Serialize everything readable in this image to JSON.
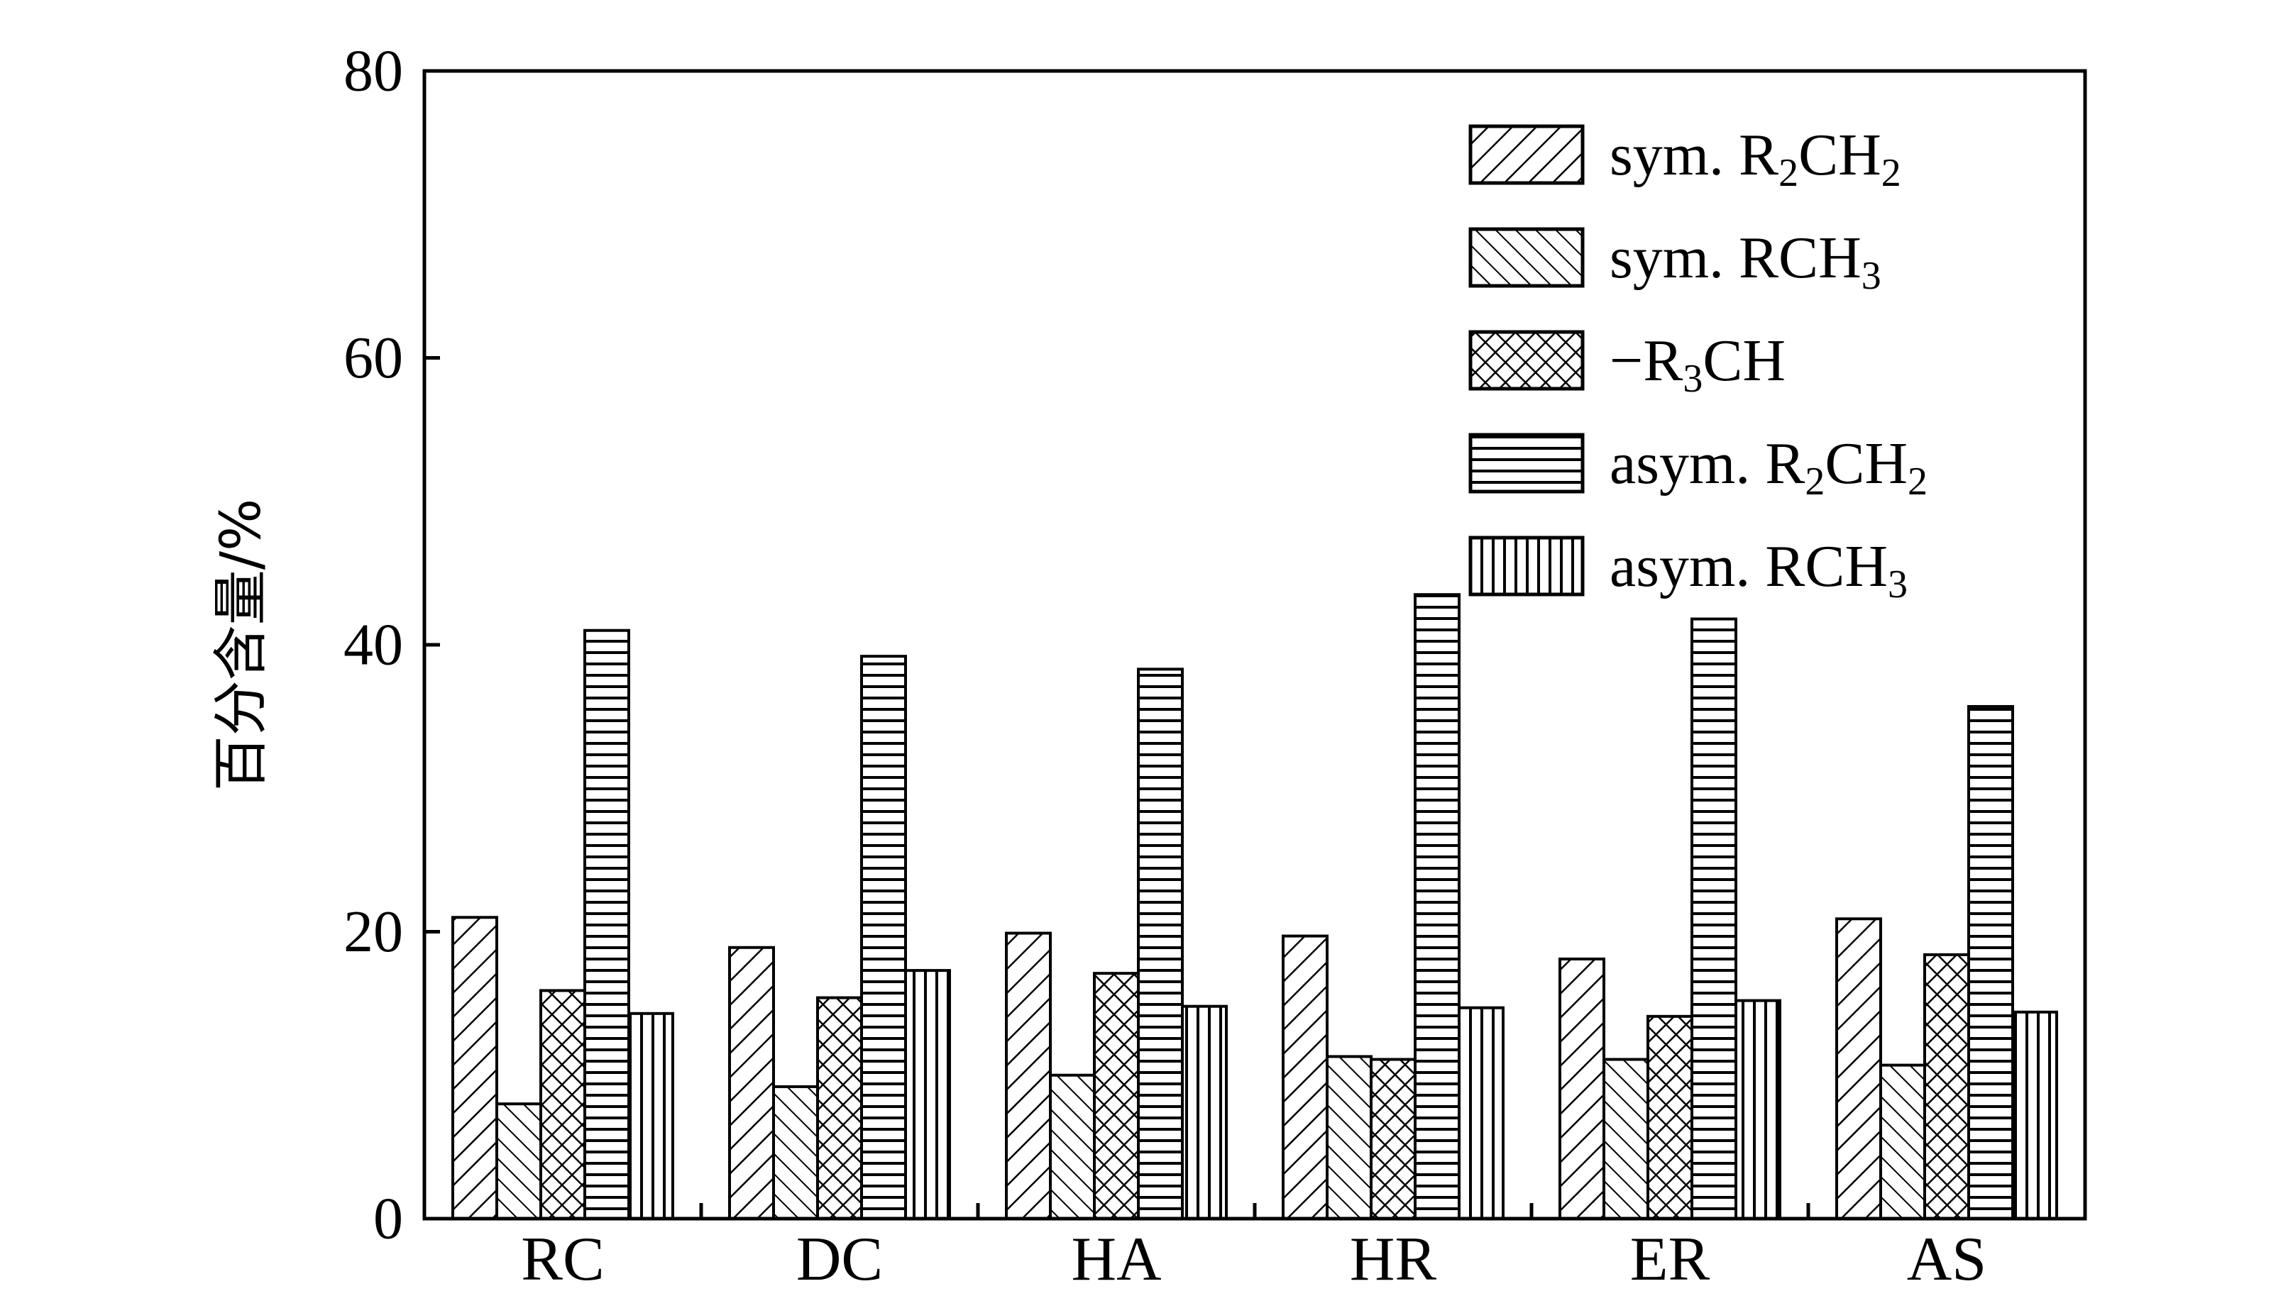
{
  "chart_data": {
    "type": "bar",
    "title": "",
    "xlabel": "",
    "ylabel": "百分含量/%",
    "ylim": [
      0,
      80
    ],
    "yticks": [
      "0",
      "20",
      "40",
      "60",
      "80"
    ],
    "grid": false,
    "legend_position": "top-right",
    "categories": [
      "RC",
      "DC",
      "HA",
      "HR",
      "ER",
      "AS"
    ],
    "series": [
      {
        "name": "sym. R2CH2",
        "legend": {
          "main": "sym. R",
          "sub1": "2",
          "mid": "CH",
          "sub2": "2"
        },
        "pattern": "diag-fwd",
        "values": [
          21.0,
          18.9,
          19.9,
          19.7,
          18.1,
          20.9
        ]
      },
      {
        "name": "sym. RCH3",
        "legend": {
          "main": "sym. RCH",
          "sub1": "3",
          "mid": "",
          "sub2": ""
        },
        "pattern": "diag-back",
        "values": [
          8.0,
          9.2,
          10.0,
          11.3,
          11.1,
          10.7
        ]
      },
      {
        "name": "-R3CH",
        "legend": {
          "main": "−R",
          "sub1": "3",
          "mid": "CH",
          "sub2": ""
        },
        "pattern": "crosshatch",
        "values": [
          15.9,
          15.4,
          17.1,
          11.1,
          14.1,
          18.4
        ]
      },
      {
        "name": "asym. R2CH2",
        "legend": {
          "main": "asym. R",
          "sub1": "2",
          "mid": "CH",
          "sub2": "2"
        },
        "pattern": "horiz",
        "values": [
          41.0,
          39.2,
          38.3,
          43.5,
          41.8,
          35.7
        ]
      },
      {
        "name": "asym. RCH3",
        "legend": {
          "main": "asym. RCH",
          "sub1": "3",
          "mid": "",
          "sub2": ""
        },
        "pattern": "vert",
        "values": [
          14.3,
          17.3,
          14.8,
          14.7,
          15.2,
          14.4
        ]
      }
    ]
  }
}
